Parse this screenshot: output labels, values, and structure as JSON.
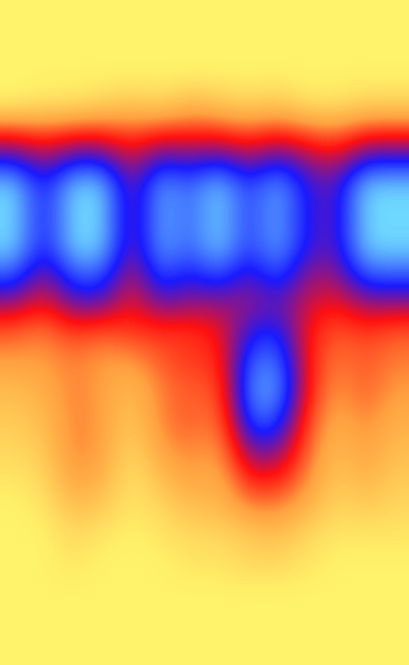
{
  "chart_data": {
    "type": "heatmap",
    "tick_labels": false,
    "color_range": [
      0,
      1
    ],
    "cells": [
      [
        0,
        0,
        0,
        0,
        0,
        0,
        0,
        0,
        0,
        0,
        0,
        0,
        0,
        0
      ],
      [
        0,
        0,
        0,
        0,
        0,
        0,
        0,
        0,
        0,
        0,
        0,
        0,
        0,
        0
      ],
      [
        0,
        0,
        0,
        0,
        0,
        0,
        0,
        0,
        0,
        0,
        0,
        0,
        0,
        0
      ],
      [
        0,
        0.05,
        0.05,
        0.1,
        0.15,
        0.1,
        0.2,
        0.15,
        0.1,
        0.15,
        0.05,
        0.05,
        0.1,
        0.1
      ],
      [
        0.45,
        0.4,
        0.45,
        0.45,
        0.4,
        0.45,
        0.45,
        0.45,
        0.4,
        0.45,
        0.4,
        0.35,
        0.45,
        0.45
      ],
      [
        0.7,
        0.6,
        0.7,
        0.7,
        0.55,
        0.7,
        0.65,
        0.7,
        0.6,
        0.7,
        0.6,
        0.55,
        0.7,
        0.7
      ],
      [
        0.95,
        0.7,
        0.95,
        0.95,
        0.6,
        0.9,
        0.8,
        0.95,
        0.75,
        0.9,
        0.7,
        0.65,
        0.95,
        0.95
      ],
      [
        0.95,
        0.7,
        0.95,
        0.95,
        0.6,
        0.9,
        0.8,
        0.95,
        0.75,
        0.9,
        0.7,
        0.65,
        0.95,
        0.95
      ],
      [
        0.95,
        0.7,
        0.95,
        0.95,
        0.6,
        0.9,
        0.8,
        0.95,
        0.75,
        0.9,
        0.7,
        0.65,
        0.95,
        0.95
      ],
      [
        0.8,
        0.6,
        0.8,
        0.8,
        0.55,
        0.8,
        0.7,
        0.8,
        0.65,
        0.8,
        0.6,
        0.6,
        0.8,
        0.8
      ],
      [
        0.6,
        0.5,
        0.65,
        0.65,
        0.5,
        0.65,
        0.6,
        0.6,
        0.6,
        0.65,
        0.55,
        0.5,
        0.6,
        0.6
      ],
      [
        0.4,
        0.35,
        0.45,
        0.4,
        0.45,
        0.45,
        0.45,
        0.5,
        0.7,
        0.75,
        0.5,
        0.4,
        0.45,
        0.4
      ],
      [
        0.3,
        0.3,
        0.35,
        0.3,
        0.3,
        0.4,
        0.45,
        0.45,
        0.8,
        0.85,
        0.5,
        0.35,
        0.4,
        0.35
      ],
      [
        0.2,
        0.25,
        0.35,
        0.3,
        0.2,
        0.35,
        0.4,
        0.4,
        0.85,
        0.9,
        0.5,
        0.3,
        0.4,
        0.3
      ],
      [
        0.15,
        0.2,
        0.35,
        0.3,
        0.15,
        0.35,
        0.4,
        0.35,
        0.8,
        0.8,
        0.45,
        0.25,
        0.35,
        0.25
      ],
      [
        0.1,
        0.15,
        0.35,
        0.3,
        0.1,
        0.3,
        0.35,
        0.3,
        0.65,
        0.65,
        0.4,
        0.2,
        0.3,
        0.2
      ],
      [
        0.05,
        0.1,
        0.3,
        0.25,
        0.05,
        0.2,
        0.3,
        0.25,
        0.5,
        0.5,
        0.35,
        0.15,
        0.25,
        0.15
      ],
      [
        0,
        0.05,
        0.2,
        0.15,
        0.05,
        0.1,
        0.2,
        0.2,
        0.35,
        0.35,
        0.25,
        0.1,
        0.15,
        0.1
      ],
      [
        0,
        0,
        0.1,
        0.05,
        0,
        0.05,
        0.1,
        0.1,
        0.15,
        0.2,
        0.1,
        0.05,
        0.05,
        0.05
      ],
      [
        0,
        0,
        0.05,
        0,
        0,
        0,
        0.05,
        0.05,
        0.1,
        0.1,
        0.05,
        0,
        0,
        0
      ],
      [
        0,
        0,
        0,
        0,
        0,
        0,
        0,
        0,
        0,
        0,
        0,
        0,
        0,
        0
      ],
      [
        0,
        0,
        0,
        0,
        0,
        0,
        0,
        0,
        0,
        0,
        0,
        0,
        0,
        0
      ],
      [
        0,
        0,
        0,
        0,
        0,
        0,
        0,
        0,
        0,
        0,
        0,
        0,
        0,
        0
      ]
    ]
  }
}
